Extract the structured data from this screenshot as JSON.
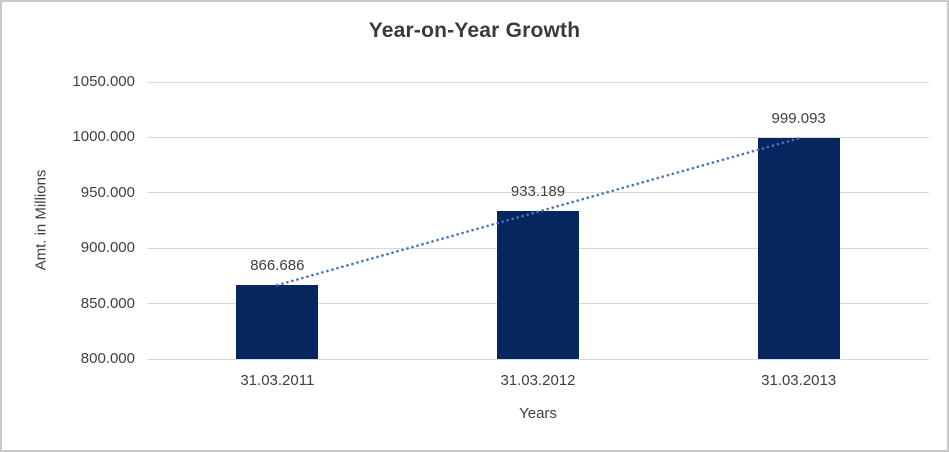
{
  "chart_data": {
    "type": "bar",
    "title": "Year-on-Year Growth",
    "xlabel": "Years",
    "ylabel": "Amt. in Millions",
    "categories": [
      "31.03.2011",
      "31.03.2012",
      "31.03.2013"
    ],
    "values": [
      866.686,
      933.189,
      999.093
    ],
    "data_labels": [
      "866.686",
      "933.189",
      "999.093"
    ],
    "ylim": [
      800,
      1050
    ],
    "ytick_step": 50,
    "ytick_labels": [
      "800.000",
      "850.000",
      "900.000",
      "950.000",
      "1000.000",
      "1050.000"
    ],
    "grid": true,
    "legend": false,
    "trendline": {
      "style": "dotted",
      "shape": "linear",
      "spans": "first-bar-top-to-last-bar-top",
      "color": "#4472C4"
    },
    "colors": {
      "bar": "#08265E",
      "trendline": "#4472C4",
      "gridline": "#D9D9D9",
      "text": "#404040",
      "title_text": "#3B3B3B",
      "background": "#FFFFFF",
      "border": "#C9C9C9"
    }
  }
}
